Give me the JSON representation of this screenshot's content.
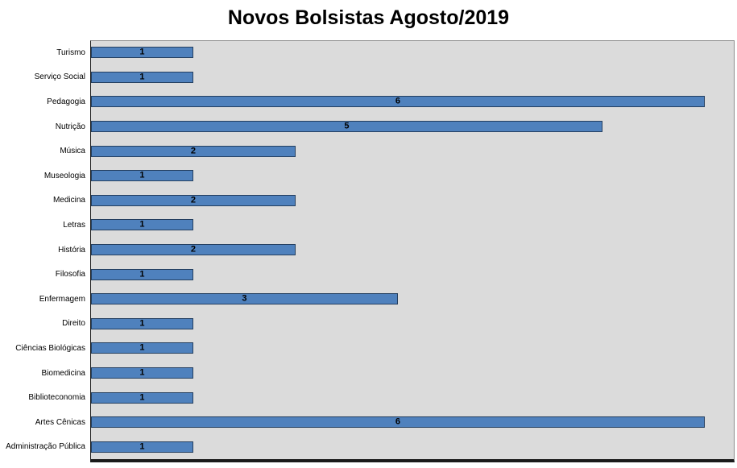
{
  "chart_data": {
    "type": "bar",
    "orientation": "horizontal",
    "title": "Novos Bolsistas Agosto/2019",
    "categories": [
      "Turismo",
      "Serviço Social",
      "Pedagogia",
      "Nutrição",
      "Música",
      "Museologia",
      "Medicina",
      "Letras",
      "História",
      "Filosofia",
      "Enfermagem",
      "Direito",
      "Ciências Biológicas",
      "Biomedicina",
      "Biblioteconomia",
      "Artes Cênicas",
      "Administração Pública"
    ],
    "values": [
      1,
      1,
      6,
      5,
      2,
      1,
      2,
      1,
      2,
      1,
      3,
      1,
      1,
      1,
      1,
      6,
      1
    ],
    "xlim": [
      0,
      6.3
    ],
    "data_labels": true,
    "legend": "none",
    "grid": false,
    "bar_color": "#4F81BD",
    "bar_border_color": "#243F60",
    "plot_bg": "#DBDBDB"
  }
}
